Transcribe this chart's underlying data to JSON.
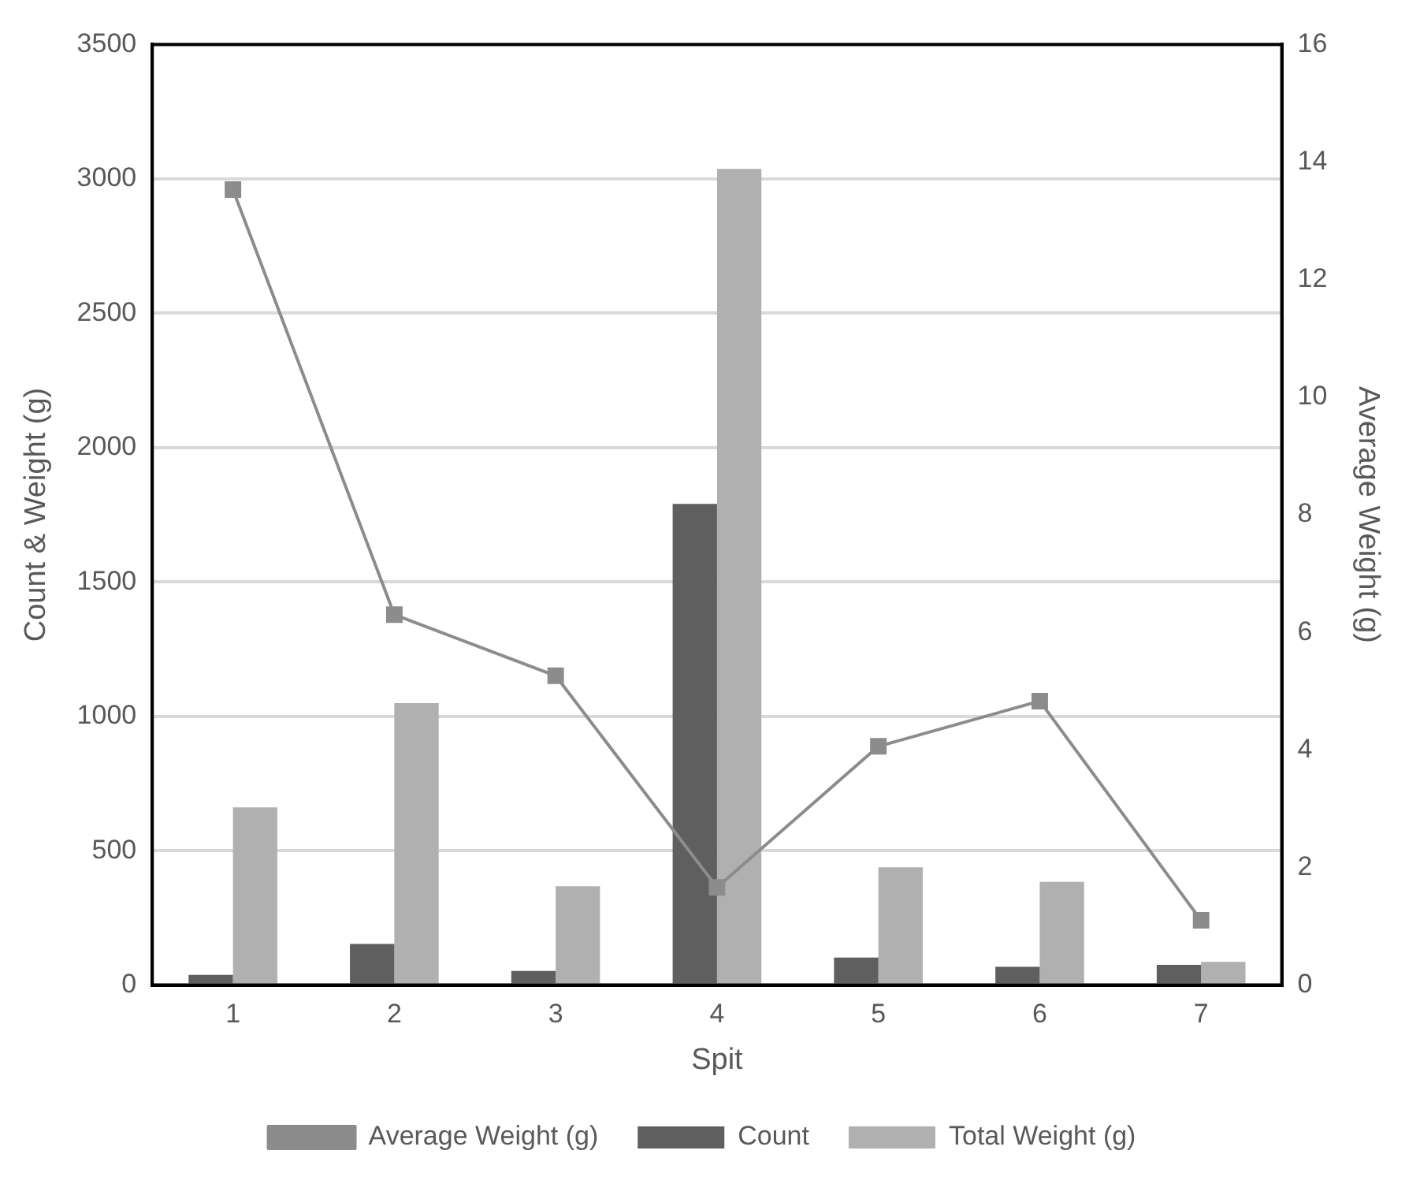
{
  "chart_data": {
    "type": "bar",
    "xlabel": "Spit",
    "ylabel": "Count & Weight (g)",
    "y2label": "Average Weight (g)",
    "categories": [
      "1",
      "2",
      "3",
      "4",
      "5",
      "6",
      "7"
    ],
    "series": [
      {
        "name": "Count",
        "color": "#5f5f5f",
        "values": [
          38,
          153,
          52,
          1790,
          102,
          68,
          75
        ]
      },
      {
        "name": "Total Weight (g)",
        "color": "#b0b0b0",
        "values": [
          661,
          1049,
          368,
          3037,
          438,
          384,
          86
        ]
      },
      {
        "name": "Average Weight (g)",
        "type": "line",
        "axis": "y2",
        "color": "#8c8c8c",
        "marker": "square",
        "values": [
          13.53,
          6.3,
          5.26,
          1.66,
          4.06,
          4.83,
          1.1
        ]
      }
    ],
    "ylim": [
      0,
      3500
    ],
    "yticks": [
      0,
      500,
      1000,
      1500,
      2000,
      2500,
      3000,
      3500
    ],
    "y2lim": [
      0,
      16
    ],
    "y2ticks": [
      0,
      2,
      4,
      6,
      8,
      10,
      12,
      14,
      16
    ],
    "grid": "y",
    "legend": "bottom"
  }
}
